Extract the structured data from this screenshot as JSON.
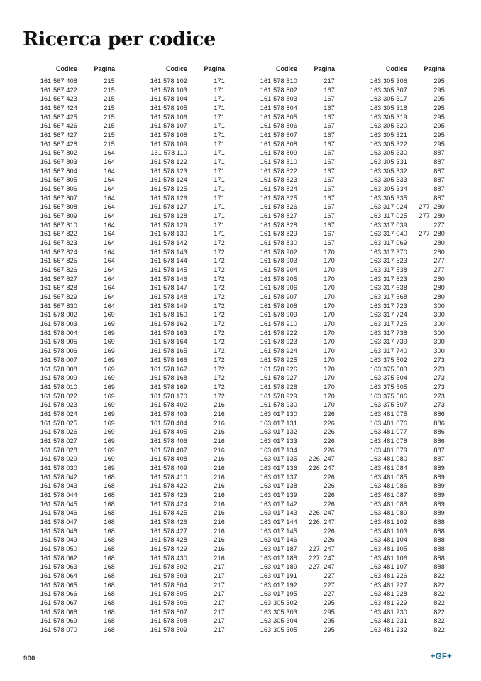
{
  "page_title": "Ricerca per codice",
  "footer": {
    "page_number": "900",
    "logo_text": "+GF+"
  },
  "colors": {
    "header_rule": "#3a566f",
    "logo_blue": "#15688e",
    "text": "#1d1d1b"
  },
  "table": {
    "header": {
      "codice": "Codice",
      "pagina": "Pagina"
    },
    "columns": [
      {
        "rows": [
          [
            "161 567 408",
            "215"
          ],
          [
            "161 567 422",
            "215"
          ],
          [
            "161 567 423",
            "215"
          ],
          [
            "161 567 424",
            "215"
          ],
          [
            "161 567 425",
            "215"
          ],
          [
            "161 567 426",
            "215"
          ],
          [
            "161 567 427",
            "215"
          ],
          [
            "161 567 428",
            "215"
          ],
          [
            "161 567 802",
            "164"
          ],
          [
            "161 567 803",
            "164"
          ],
          [
            "161 567 804",
            "164"
          ],
          [
            "161 567 805",
            "164"
          ],
          [
            "161 567 806",
            "164"
          ],
          [
            "161 567 807",
            "164"
          ],
          [
            "161 567 808",
            "164"
          ],
          [
            "161 567 809",
            "164"
          ],
          [
            "161 567 810",
            "164"
          ],
          [
            "161 567 822",
            "164"
          ],
          [
            "161 567 823",
            "164"
          ],
          [
            "161 567 824",
            "164"
          ],
          [
            "161 567 825",
            "164"
          ],
          [
            "161 567 826",
            "164"
          ],
          [
            "161 567 827",
            "164"
          ],
          [
            "161 567 828",
            "164"
          ],
          [
            "161 567 829",
            "164"
          ],
          [
            "161 567 830",
            "164"
          ],
          [
            "161 578 002",
            "169"
          ],
          [
            "161 578 003",
            "169"
          ],
          [
            "161 578 004",
            "169"
          ],
          [
            "161 578 005",
            "169"
          ],
          [
            "161 578 006",
            "169"
          ],
          [
            "161 578 007",
            "169"
          ],
          [
            "161 578 008",
            "169"
          ],
          [
            "161 578 009",
            "169"
          ],
          [
            "161 578 010",
            "169"
          ],
          [
            "161 578 022",
            "169"
          ],
          [
            "161 578 023",
            "169"
          ],
          [
            "161 578 024",
            "169"
          ],
          [
            "161 578 025",
            "169"
          ],
          [
            "161 578 026",
            "169"
          ],
          [
            "161 578 027",
            "169"
          ],
          [
            "161 578 028",
            "169"
          ],
          [
            "161 578 029",
            "169"
          ],
          [
            "161 578 030",
            "169"
          ],
          [
            "161 578 042",
            "168"
          ],
          [
            "161 578 043",
            "168"
          ],
          [
            "161 578 044",
            "168"
          ],
          [
            "161 578 045",
            "168"
          ],
          [
            "161 578 046",
            "168"
          ],
          [
            "161 578 047",
            "168"
          ],
          [
            "161 578 048",
            "168"
          ],
          [
            "161 578 049",
            "168"
          ],
          [
            "161 578 050",
            "168"
          ],
          [
            "161 578 062",
            "168"
          ],
          [
            "161 578 063",
            "168"
          ],
          [
            "161 578 064",
            "168"
          ],
          [
            "161 578 065",
            "168"
          ],
          [
            "161 578 066",
            "168"
          ],
          [
            "161 578 067",
            "168"
          ],
          [
            "161 578 068",
            "168"
          ],
          [
            "161 578 069",
            "168"
          ],
          [
            "161 578 070",
            "168"
          ]
        ]
      },
      {
        "rows": [
          [
            "161 578 102",
            "171"
          ],
          [
            "161 578 103",
            "171"
          ],
          [
            "161 578 104",
            "171"
          ],
          [
            "161 578 105",
            "171"
          ],
          [
            "161 578 106",
            "171"
          ],
          [
            "161 578 107",
            "171"
          ],
          [
            "161 578 108",
            "171"
          ],
          [
            "161 578 109",
            "171"
          ],
          [
            "161 578 110",
            "171"
          ],
          [
            "161 578 122",
            "171"
          ],
          [
            "161 578 123",
            "171"
          ],
          [
            "161 578 124",
            "171"
          ],
          [
            "161 578 125",
            "171"
          ],
          [
            "161 578 126",
            "171"
          ],
          [
            "161 578 127",
            "171"
          ],
          [
            "161 578 128",
            "171"
          ],
          [
            "161 578 129",
            "171"
          ],
          [
            "161 578 130",
            "171"
          ],
          [
            "161 578 142",
            "172"
          ],
          [
            "161 578 143",
            "172"
          ],
          [
            "161 578 144",
            "172"
          ],
          [
            "161 578 145",
            "172"
          ],
          [
            "161 578 146",
            "172"
          ],
          [
            "161 578 147",
            "172"
          ],
          [
            "161 578 148",
            "172"
          ],
          [
            "161 578 149",
            "172"
          ],
          [
            "161 578 150",
            "172"
          ],
          [
            "161 578 162",
            "172"
          ],
          [
            "161 578 163",
            "172"
          ],
          [
            "161 578 164",
            "172"
          ],
          [
            "161 578 165",
            "172"
          ],
          [
            "161 578 166",
            "172"
          ],
          [
            "161 578 167",
            "172"
          ],
          [
            "161 578 168",
            "172"
          ],
          [
            "161 578 169",
            "172"
          ],
          [
            "161 578 170",
            "172"
          ],
          [
            "161 578 402",
            "216"
          ],
          [
            "161 578 403",
            "216"
          ],
          [
            "161 578 404",
            "216"
          ],
          [
            "161 578 405",
            "216"
          ],
          [
            "161 578 406",
            "216"
          ],
          [
            "161 578 407",
            "216"
          ],
          [
            "161 578 408",
            "216"
          ],
          [
            "161 578 409",
            "216"
          ],
          [
            "161 578 410",
            "216"
          ],
          [
            "161 578 422",
            "216"
          ],
          [
            "161 578 423",
            "216"
          ],
          [
            "161 578 424",
            "216"
          ],
          [
            "161 578 425",
            "216"
          ],
          [
            "161 578 426",
            "216"
          ],
          [
            "161 578 427",
            "216"
          ],
          [
            "161 578 428",
            "216"
          ],
          [
            "161 578 429",
            "216"
          ],
          [
            "161 578 430",
            "216"
          ],
          [
            "161 578 502",
            "217"
          ],
          [
            "161 578 503",
            "217"
          ],
          [
            "161 578 504",
            "217"
          ],
          [
            "161 578 505",
            "217"
          ],
          [
            "161 578 506",
            "217"
          ],
          [
            "161 578 507",
            "217"
          ],
          [
            "161 578 508",
            "217"
          ],
          [
            "161 578 509",
            "217"
          ]
        ]
      },
      {
        "rows": [
          [
            "161 578 510",
            "217"
          ],
          [
            "161 578 802",
            "167"
          ],
          [
            "161 578 803",
            "167"
          ],
          [
            "161 578 804",
            "167"
          ],
          [
            "161 578 805",
            "167"
          ],
          [
            "161 578 806",
            "167"
          ],
          [
            "161 578 807",
            "167"
          ],
          [
            "161 578 808",
            "167"
          ],
          [
            "161 578 809",
            "167"
          ],
          [
            "161 578 810",
            "167"
          ],
          [
            "161 578 822",
            "167"
          ],
          [
            "161 578 823",
            "167"
          ],
          [
            "161 578 824",
            "167"
          ],
          [
            "161 578 825",
            "167"
          ],
          [
            "161 578 826",
            "167"
          ],
          [
            "161 578 827",
            "167"
          ],
          [
            "161 578 828",
            "167"
          ],
          [
            "161 578 829",
            "167"
          ],
          [
            "161 578 830",
            "167"
          ],
          [
            "161 578 902",
            "170"
          ],
          [
            "161 578 903",
            "170"
          ],
          [
            "161 578 904",
            "170"
          ],
          [
            "161 578 905",
            "170"
          ],
          [
            "161 578 906",
            "170"
          ],
          [
            "161 578 907",
            "170"
          ],
          [
            "161 578 908",
            "170"
          ],
          [
            "161 578 909",
            "170"
          ],
          [
            "161 578 910",
            "170"
          ],
          [
            "161 578 922",
            "170"
          ],
          [
            "161 578 923",
            "170"
          ],
          [
            "161 578 924",
            "170"
          ],
          [
            "161 578 925",
            "170"
          ],
          [
            "161 578 926",
            "170"
          ],
          [
            "161 578 927",
            "170"
          ],
          [
            "161 578 928",
            "170"
          ],
          [
            "161 578 929",
            "170"
          ],
          [
            "161 578 930",
            "170"
          ],
          [
            "163 017 130",
            "226"
          ],
          [
            "163 017 131",
            "226"
          ],
          [
            "163 017 132",
            "226"
          ],
          [
            "163 017 133",
            "226"
          ],
          [
            "163 017 134",
            "226"
          ],
          [
            "163 017 135",
            "226, 247"
          ],
          [
            "163 017 136",
            "226, 247"
          ],
          [
            "163 017 137",
            "226"
          ],
          [
            "163 017 138",
            "226"
          ],
          [
            "163 017 139",
            "226"
          ],
          [
            "163 017 142",
            "226"
          ],
          [
            "163 017 143",
            "226, 247"
          ],
          [
            "163 017 144",
            "226, 247"
          ],
          [
            "163 017 145",
            "226"
          ],
          [
            "163 017 146",
            "226"
          ],
          [
            "163 017 187",
            "227, 247"
          ],
          [
            "163 017 188",
            "227, 247"
          ],
          [
            "163 017 189",
            "227, 247"
          ],
          [
            "163 017 191",
            "227"
          ],
          [
            "163 017 192",
            "227"
          ],
          [
            "163 017 195",
            "227"
          ],
          [
            "163 305 302",
            "295"
          ],
          [
            "163 305 303",
            "295"
          ],
          [
            "163 305 304",
            "295"
          ],
          [
            "163 305 305",
            "295"
          ]
        ]
      },
      {
        "rows": [
          [
            "163 305 306",
            "295"
          ],
          [
            "163 305 307",
            "295"
          ],
          [
            "163 305 317",
            "295"
          ],
          [
            "163 305 318",
            "295"
          ],
          [
            "163 305 319",
            "295"
          ],
          [
            "163 305 320",
            "295"
          ],
          [
            "163 305 321",
            "295"
          ],
          [
            "163 305 322",
            "295"
          ],
          [
            "163 305 330",
            "887"
          ],
          [
            "163 305 331",
            "887"
          ],
          [
            "163 305 332",
            "887"
          ],
          [
            "163 305 333",
            "887"
          ],
          [
            "163 305 334",
            "887"
          ],
          [
            "163 305 335",
            "887"
          ],
          [
            "163 317 024",
            "277, 280"
          ],
          [
            "163 317 025",
            "277, 280"
          ],
          [
            "163 317 039",
            "277"
          ],
          [
            "163 317 040",
            "277, 280"
          ],
          [
            "163 317 069",
            "280"
          ],
          [
            "163 317 370",
            "280"
          ],
          [
            "163 317 523",
            "277"
          ],
          [
            "163 317 538",
            "277"
          ],
          [
            "163 317 623",
            "280"
          ],
          [
            "163 317 638",
            "280"
          ],
          [
            "163 317 668",
            "280"
          ],
          [
            "163 317 723",
            "300"
          ],
          [
            "163 317 724",
            "300"
          ],
          [
            "163 317 725",
            "300"
          ],
          [
            "163 317 738",
            "300"
          ],
          [
            "163 317 739",
            "300"
          ],
          [
            "163 317 740",
            "300"
          ],
          [
            "163 375 502",
            "273"
          ],
          [
            "163 375 503",
            "273"
          ],
          [
            "163 375 504",
            "273"
          ],
          [
            "163 375 505",
            "273"
          ],
          [
            "163 375 506",
            "273"
          ],
          [
            "163 375 507",
            "273"
          ],
          [
            "163 481 075",
            "886"
          ],
          [
            "163 481 076",
            "886"
          ],
          [
            "163 481 077",
            "886"
          ],
          [
            "163 481 078",
            "886"
          ],
          [
            "163 481 079",
            "887"
          ],
          [
            "163 481 080",
            "887"
          ],
          [
            "163 481 084",
            "889"
          ],
          [
            "163 481 085",
            "889"
          ],
          [
            "163 481 086",
            "889"
          ],
          [
            "163 481 087",
            "889"
          ],
          [
            "163 481 088",
            "889"
          ],
          [
            "163 481 089",
            "889"
          ],
          [
            "163 481 102",
            "888"
          ],
          [
            "163 481 103",
            "888"
          ],
          [
            "163 481 104",
            "888"
          ],
          [
            "163 481 105",
            "888"
          ],
          [
            "163 481 106",
            "888"
          ],
          [
            "163 481 107",
            "888"
          ],
          [
            "163 481 226",
            "822"
          ],
          [
            "163 481 227",
            "822"
          ],
          [
            "163 481 228",
            "822"
          ],
          [
            "163 481 229",
            "822"
          ],
          [
            "163 481 230",
            "822"
          ],
          [
            "163 481 231",
            "822"
          ],
          [
            "163 481 232",
            "822"
          ]
        ]
      }
    ]
  }
}
